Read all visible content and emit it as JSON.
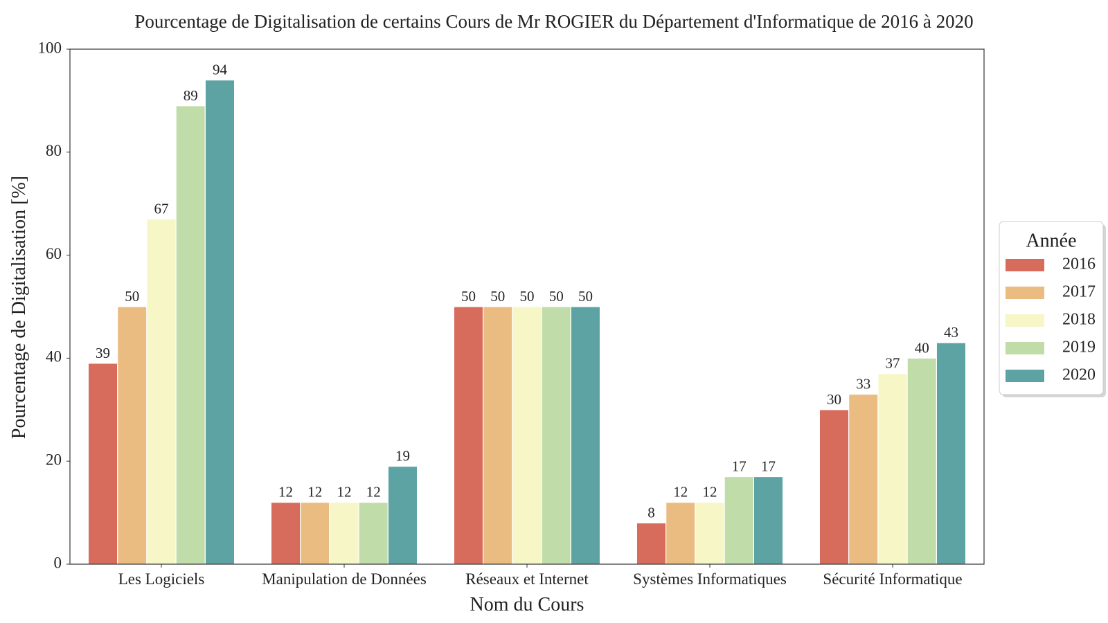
{
  "chart_data": {
    "type": "bar",
    "title": "Pourcentage de Digitalisation de certains Cours de Mr ROGIER du Département d'Informatique de 2016 à 2020",
    "xlabel": "Nom du Cours",
    "ylabel": "Pourcentage de Digitalisation [%]",
    "ylim": [
      0,
      100
    ],
    "yticks": [
      0,
      20,
      40,
      60,
      80,
      100
    ],
    "grid": false,
    "legend": {
      "title": "Année",
      "placement": "right-center, outside plot"
    },
    "categories": [
      "Les Logiciels",
      "Manipulation de Données",
      "Réseaux et Internet",
      "Systèmes Informatiques",
      "Sécurité Informatique"
    ],
    "series": [
      {
        "name": "2016",
        "color": "#d76c5c",
        "values": [
          39,
          12,
          50,
          8,
          30
        ]
      },
      {
        "name": "2017",
        "color": "#ebbc81",
        "values": [
          50,
          12,
          50,
          12,
          33
        ]
      },
      {
        "name": "2018",
        "color": "#f7f6c6",
        "values": [
          67,
          12,
          50,
          12,
          37
        ]
      },
      {
        "name": "2019",
        "color": "#c0dca9",
        "values": [
          89,
          12,
          50,
          17,
          40
        ]
      },
      {
        "name": "2020",
        "color": "#5ea3a3",
        "values": [
          94,
          19,
          50,
          17,
          43
        ]
      }
    ]
  }
}
